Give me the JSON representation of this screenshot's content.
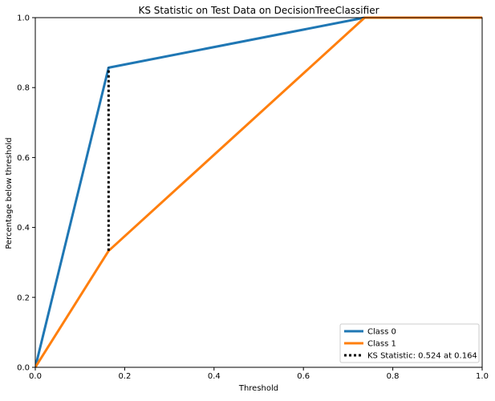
{
  "chart_data": {
    "type": "line",
    "title": "KS Statistic on Test Data on DecisionTreeClassifier",
    "xlabel": "Threshold",
    "ylabel": "Percentage below threshold",
    "xlim": [
      0.0,
      1.0
    ],
    "ylim": [
      0.0,
      1.0
    ],
    "xticks": [
      "0.0",
      "0.2",
      "0.4",
      "0.6",
      "0.8",
      "1.0"
    ],
    "yticks": [
      "0.0",
      "0.2",
      "0.4",
      "0.6",
      "0.8",
      "1.0"
    ],
    "grid": false,
    "legend_placement": "lower-right",
    "series": [
      {
        "name": "Class 0",
        "color": "#1f77b4",
        "style": "solid",
        "x": [
          0.0,
          0.164,
          0.737,
          1.0
        ],
        "y": [
          0.0,
          0.857,
          1.0,
          1.0
        ]
      },
      {
        "name": "Class 1",
        "color": "#ff7f0e",
        "style": "solid",
        "x": [
          0.0,
          0.164,
          0.737,
          1.0
        ],
        "y": [
          0.0,
          0.333,
          1.0,
          1.0
        ]
      },
      {
        "name": "KS Statistic: 0.524 at 0.164",
        "color": "#000000",
        "style": "dotted",
        "x": [
          0.164,
          0.164
        ],
        "y": [
          0.333,
          0.857
        ]
      }
    ]
  }
}
